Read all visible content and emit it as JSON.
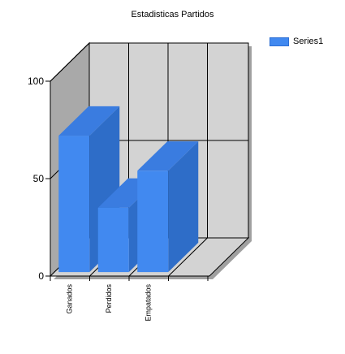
{
  "chart_data": {
    "type": "bar",
    "title": "Estadisticas Partidos",
    "categories": [
      "Ganados",
      "Perdidos",
      "Empatados"
    ],
    "series": [
      {
        "name": "Series1",
        "values": [
          70,
          33,
          52
        ],
        "color": "#4189f0"
      }
    ],
    "ylim": [
      0,
      100
    ],
    "yticks": [
      "0",
      "50",
      "100"
    ],
    "style": "3d",
    "grid": true,
    "legend_placement": "top-right",
    "wall_color": "#d3d3d3",
    "side_wall_color": "#a9a9a9"
  }
}
